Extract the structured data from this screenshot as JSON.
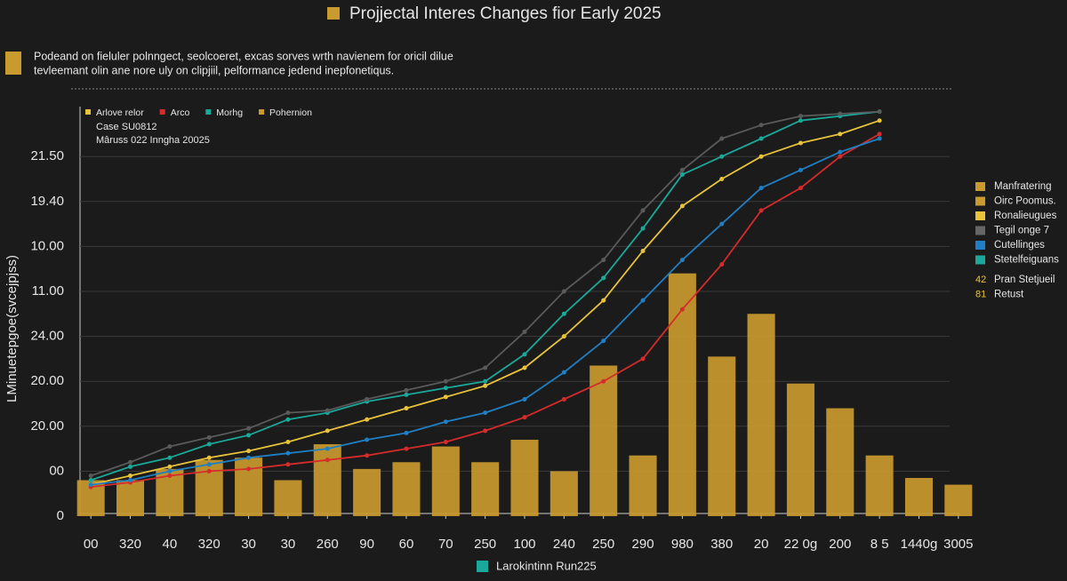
{
  "chart_data": {
    "type": "bar",
    "title": "Projjectal Interes Changes fior Early 2025",
    "subtitle": [
      "Podeand on fieluler polnngect, seolcoeret, excas sorves wrth navienem for oricil dilue",
      "tevleemant olin ane nore uly on clipjiil, pelformance jedend inepfonetiqus."
    ],
    "notes": [
      "Case SU0812",
      "Mâruss 022 Inngha 20025"
    ],
    "y_label": "LMinuetepgoe(svcejpjss)",
    "x_label": "Larokintinn Run225",
    "categories": [
      "00",
      "320",
      "40",
      "320",
      "30",
      "30",
      "260",
      "90",
      "60",
      "70",
      "250",
      "100",
      "240",
      "250",
      "290",
      "980",
      "380",
      "20",
      "22 0g",
      "200",
      "8 5",
      "1440g",
      "3005"
    ],
    "ylim": [
      0,
      9
    ],
    "yticks": [
      {
        "value": 0,
        "label": "0"
      },
      {
        "value": 1,
        "label": "00"
      },
      {
        "value": 2,
        "label": "20.00"
      },
      {
        "value": 3,
        "label": "20.00"
      },
      {
        "value": 4,
        "label": "24.00"
      },
      {
        "value": 5,
        "label": "11.00"
      },
      {
        "value": 6,
        "label": "10.00"
      },
      {
        "value": 7,
        "label": "19.40"
      },
      {
        "value": 8,
        "label": "21.50"
      }
    ],
    "grid": true,
    "series": [
      {
        "name": "Arlove relor",
        "type": "line",
        "color": "#e8c33a",
        "values": [
          0.7,
          0.9,
          1.1,
          1.3,
          1.45,
          1.65,
          1.9,
          2.15,
          2.4,
          2.65,
          2.9,
          3.3,
          4.0,
          4.8,
          5.9,
          6.9,
          7.5,
          8.0,
          8.3,
          8.5,
          8.8,
          null,
          null
        ]
      },
      {
        "name": "Arco",
        "type": "line",
        "color": "#d62b2b",
        "values": [
          0.65,
          0.75,
          0.9,
          1.0,
          1.05,
          1.15,
          1.25,
          1.35,
          1.5,
          1.65,
          1.9,
          2.2,
          2.6,
          3.0,
          3.5,
          4.6,
          5.6,
          6.8,
          7.3,
          8.0,
          8.5,
          null,
          null
        ]
      },
      {
        "name": "Morhg",
        "type": "line",
        "color": "#1aa89a",
        "values": [
          0.8,
          1.1,
          1.3,
          1.6,
          1.8,
          2.15,
          2.3,
          2.55,
          2.7,
          2.85,
          3.0,
          3.6,
          4.5,
          5.3,
          6.4,
          7.6,
          8.0,
          8.4,
          8.8,
          8.9,
          9.0,
          null,
          null
        ]
      },
      {
        "type": "line",
        "color": "#5a5a5a",
        "values": [
          0.9,
          1.2,
          1.55,
          1.75,
          1.95,
          2.3,
          2.35,
          2.6,
          2.8,
          3.0,
          3.3,
          4.1,
          5.0,
          5.7,
          6.8,
          7.7,
          8.4,
          8.7,
          8.9,
          8.95,
          9.0,
          null,
          null
        ]
      },
      {
        "type": "line",
        "color": "#1f7fc4",
        "values": [
          0.7,
          0.8,
          1.0,
          1.15,
          1.3,
          1.4,
          1.5,
          1.7,
          1.85,
          2.1,
          2.3,
          2.6,
          3.2,
          3.9,
          4.8,
          5.7,
          6.5,
          7.3,
          7.7,
          8.1,
          8.4,
          null,
          null
        ]
      },
      {
        "name": "Pohernion",
        "type": "bar",
        "color": "#c99a2e",
        "values": [
          0.8,
          0.8,
          1.05,
          1.25,
          1.3,
          0.8,
          1.6,
          1.05,
          1.2,
          1.55,
          1.2,
          1.7,
          1.0,
          3.35,
          1.35,
          5.4,
          3.55,
          4.5,
          2.95,
          2.4,
          1.35,
          0.85,
          0.7
        ]
      }
    ],
    "legend_right": [
      {
        "label": "Manfratering",
        "color": "#c99a2e"
      },
      {
        "label": "Oirc Poomus.",
        "color": "#c99a2e"
      },
      {
        "label": "Ronalieugues",
        "color": "#e8c33a"
      },
      {
        "label": "Tegil onge 7",
        "color": "#666666"
      },
      {
        "label": "Cutellinges",
        "color": "#1f7fc4"
      },
      {
        "label": "Stetelfeiguans",
        "color": "#1aa89a"
      },
      {
        "prefix": "42",
        "label": "Pran Stetjueil"
      },
      {
        "prefix": "81",
        "label": "Retust"
      }
    ]
  }
}
